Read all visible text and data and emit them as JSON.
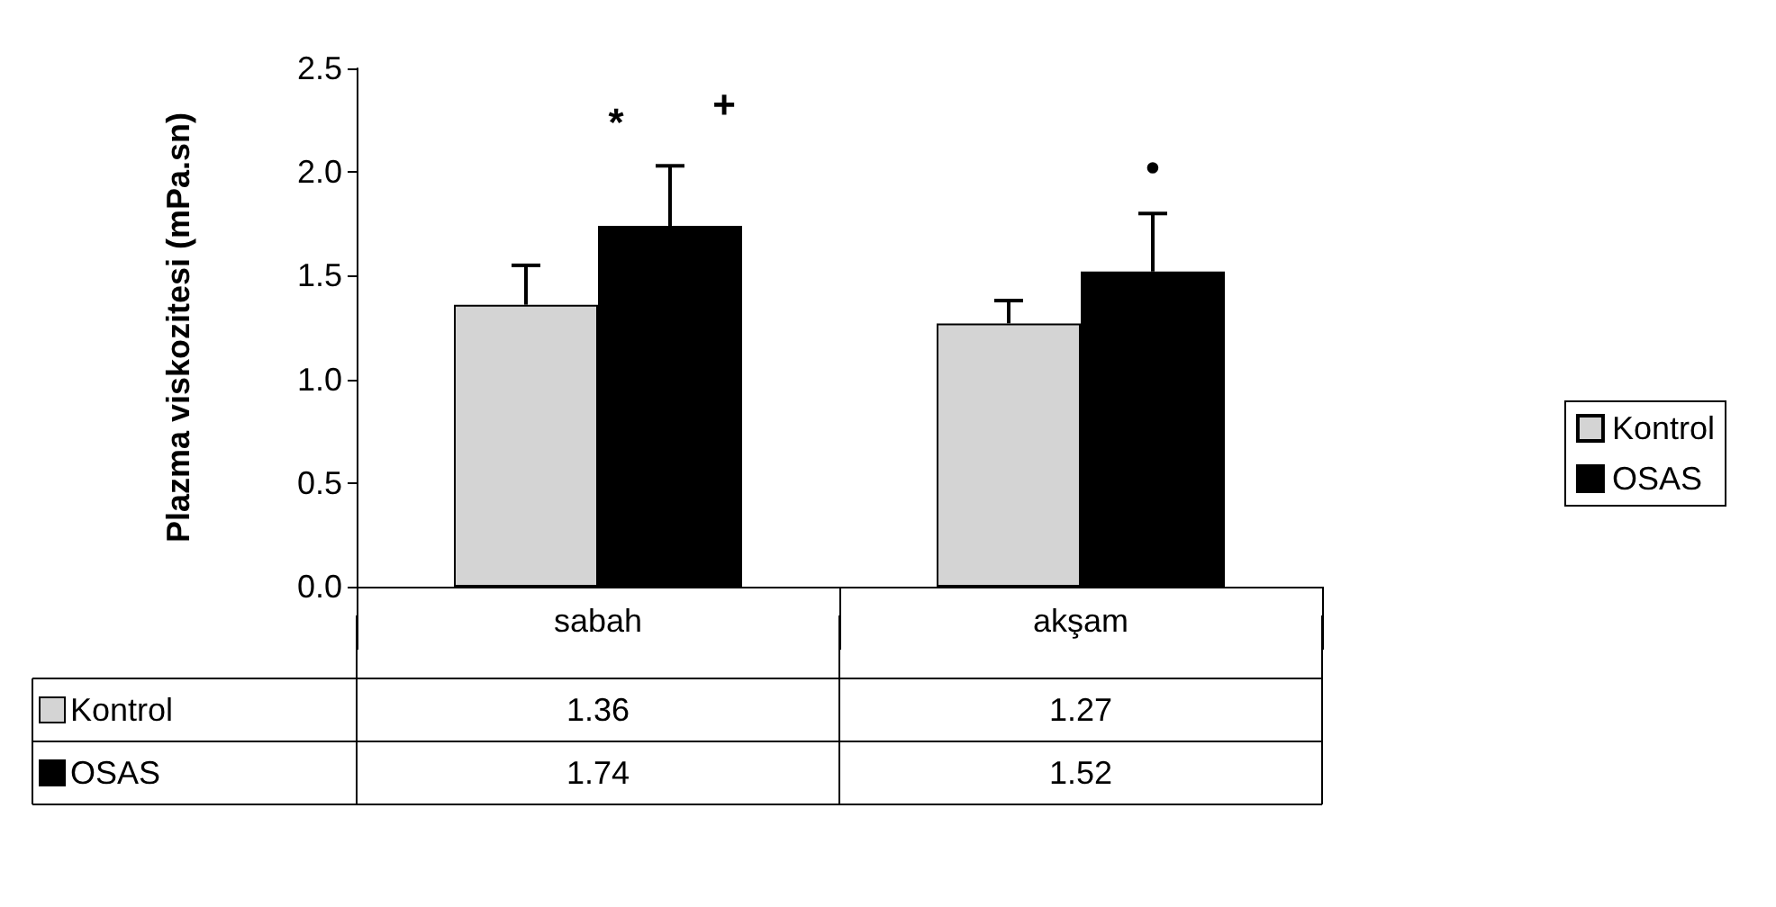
{
  "chart_data": {
    "type": "bar",
    "ylabel": "Plazma viskozitesi (mPa.sn)",
    "categories": [
      "sabah",
      "akşam"
    ],
    "series": [
      {
        "name": "Kontrol",
        "color": "#d4d4d4",
        "values": [
          1.36,
          1.27
        ],
        "errors": [
          0.19,
          0.11
        ]
      },
      {
        "name": "OSAS",
        "color": "#000000",
        "values": [
          1.74,
          1.52
        ],
        "errors": [
          0.29,
          0.28
        ]
      }
    ],
    "ylim": [
      0,
      2.5
    ],
    "yticks": [
      {
        "value": 0,
        "label": "0.0"
      },
      0.5,
      {
        "value": 1,
        "label": "1.0"
      },
      1.5,
      {
        "value": 2,
        "label": "2.0"
      },
      2.5
    ],
    "grid": false,
    "legend": "right",
    "data_labels": true,
    "annotations": [
      "*",
      "+",
      "•"
    ]
  }
}
